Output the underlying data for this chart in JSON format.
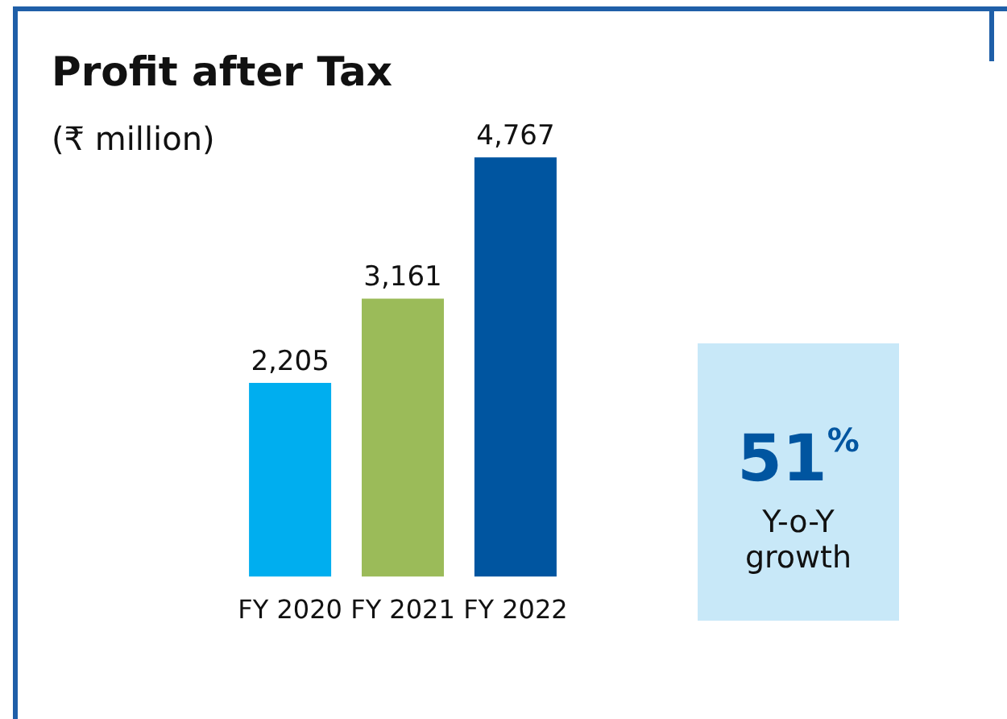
{
  "chart_data": {
    "type": "bar",
    "title": "Profit after Tax",
    "subtitle": "(₹ million)",
    "categories": [
      "FY 2020",
      "FY 2021",
      "FY 2022"
    ],
    "values": [
      2205,
      3161,
      4767
    ],
    "colors": [
      "#00aeef",
      "#9bbb59",
      "#0055a0"
    ],
    "value_labels": [
      "2,205",
      "3,161",
      "4,767"
    ],
    "grid": false,
    "legend": false,
    "annotations": [
      "51$^{%}$",
      "Y-o-Y growth"
    ]
  }
}
